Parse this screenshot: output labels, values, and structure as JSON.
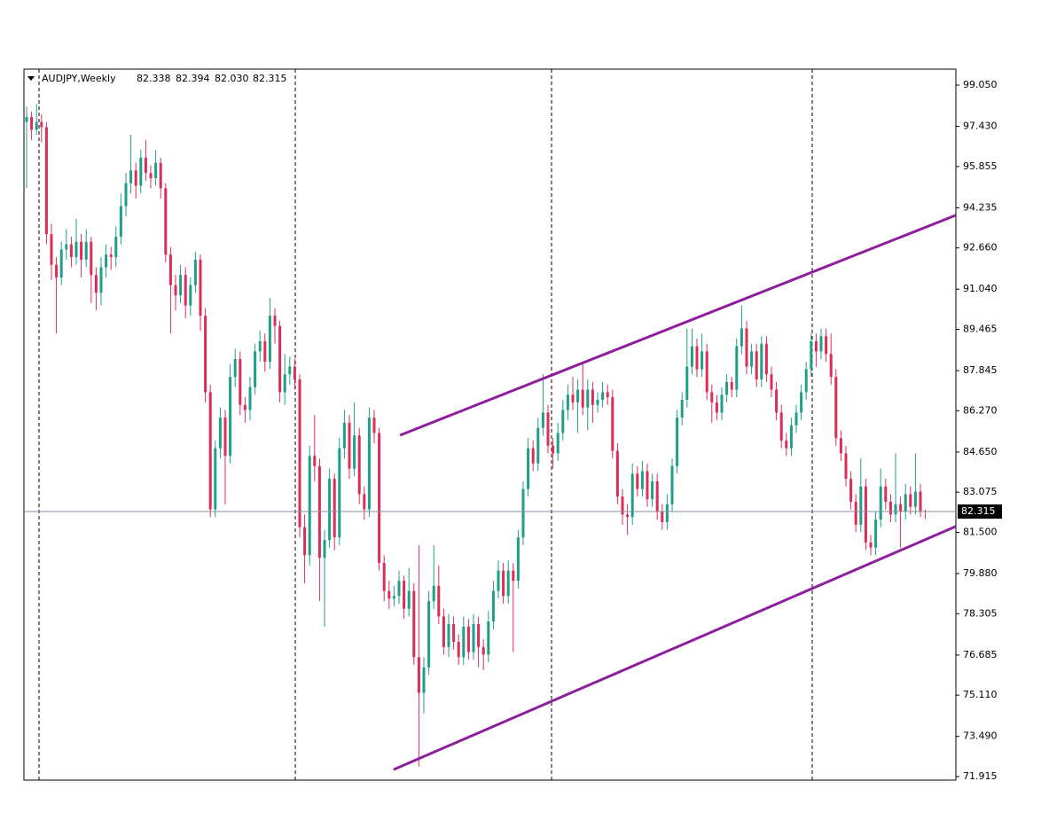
{
  "chart_data": {
    "type": "candlestick",
    "symbol": "AUDJPY,Weekly",
    "header_values": [
      82.338,
      82.394,
      {
        "value": 82.03,
        "label": "82.030"
      },
      82.315
    ],
    "last_price": 82.315,
    "ylim": [
      71.776,
      99.676
    ],
    "yticks": [
      {
        "value": 99.05,
        "label": "99.050"
      },
      {
        "value": 97.43,
        "label": "97.430"
      },
      95.855,
      94.235,
      {
        "value": 92.66,
        "label": "92.660"
      },
      {
        "value": 91.04,
        "label": "91.040"
      },
      89.465,
      87.845,
      {
        "value": 86.27,
        "label": "86.270"
      },
      {
        "value": 84.65,
        "label": "84.650"
      },
      83.075,
      {
        "value": 81.5,
        "label": "81.500"
      },
      {
        "value": 79.88,
        "label": "79.880"
      },
      78.305,
      76.685,
      {
        "value": 75.11,
        "label": "75.110"
      },
      {
        "value": 73.49,
        "label": "73.490"
      },
      71.915
    ],
    "up_color": "#1f9e89",
    "down_color": "#dc2c57",
    "ohlc": [
      [
        97.6,
        98.2,
        95.0,
        97.8
      ],
      [
        97.8,
        98.0,
        96.9,
        97.3
      ],
      [
        97.3,
        98.3,
        97.1,
        97.6
      ],
      [
        97.6,
        97.9,
        96.8,
        97.4
      ],
      [
        97.4,
        97.6,
        92.8,
        93.2
      ],
      [
        93.2,
        93.6,
        91.4,
        92.0
      ],
      [
        92.0,
        92.3,
        89.3,
        91.5
      ],
      [
        91.5,
        92.9,
        91.2,
        92.6
      ],
      [
        92.6,
        93.4,
        92.2,
        92.8
      ],
      [
        92.8,
        93.1,
        91.9,
        92.3
      ],
      [
        92.3,
        93.8,
        92.0,
        92.9
      ],
      [
        92.9,
        93.2,
        91.5,
        92.2
      ],
      [
        92.2,
        93.4,
        91.9,
        92.9
      ],
      [
        92.9,
        93.1,
        90.5,
        91.6
      ],
      [
        91.6,
        91.9,
        90.2,
        90.9
      ],
      [
        90.9,
        92.3,
        90.4,
        91.9
      ],
      [
        91.9,
        92.8,
        91.5,
        92.4
      ],
      [
        92.4,
        92.7,
        91.8,
        92.3
      ],
      [
        92.3,
        93.5,
        91.9,
        93.1
      ],
      [
        93.1,
        94.8,
        92.8,
        94.3
      ],
      [
        94.3,
        95.6,
        93.9,
        95.2
      ],
      [
        95.2,
        97.1,
        94.8,
        95.7
      ],
      [
        95.7,
        96.0,
        94.6,
        95.1
      ],
      [
        95.1,
        96.5,
        94.8,
        96.2
      ],
      [
        96.2,
        96.9,
        95.3,
        95.6
      ],
      [
        95.6,
        95.9,
        95.0,
        95.4
      ],
      [
        95.4,
        96.5,
        95.1,
        96.0
      ],
      [
        96.0,
        96.2,
        94.6,
        95.0
      ],
      [
        95.0,
        95.2,
        92.1,
        92.4
      ],
      [
        92.4,
        92.7,
        89.3,
        91.2
      ],
      [
        91.2,
        91.6,
        90.2,
        90.8
      ],
      [
        90.8,
        92.0,
        90.5,
        91.6
      ],
      [
        91.6,
        91.9,
        89.9,
        90.4
      ],
      [
        90.4,
        91.5,
        90.0,
        91.2
      ],
      [
        91.2,
        92.5,
        90.9,
        92.2
      ],
      [
        92.2,
        92.4,
        89.4,
        90.0
      ],
      [
        90.0,
        90.3,
        86.6,
        87.0
      ],
      [
        87.0,
        87.3,
        82.1,
        82.4
      ],
      [
        82.4,
        85.1,
        82.1,
        84.8
      ],
      [
        84.8,
        86.4,
        84.4,
        86.0
      ],
      [
        86.0,
        86.3,
        82.6,
        84.5
      ],
      [
        84.5,
        88.1,
        84.2,
        87.6
      ],
      [
        87.6,
        88.7,
        87.2,
        88.3
      ],
      [
        88.3,
        88.6,
        86.1,
        86.5
      ],
      [
        86.5,
        86.8,
        85.8,
        86.3
      ],
      [
        86.3,
        87.6,
        85.9,
        87.2
      ],
      [
        87.2,
        88.9,
        86.9,
        88.6
      ],
      [
        88.6,
        89.4,
        88.2,
        89.0
      ],
      [
        89.0,
        89.3,
        87.8,
        88.2
      ],
      [
        88.2,
        90.7,
        87.9,
        90.0
      ],
      [
        90.0,
        90.3,
        88.9,
        89.6
      ],
      [
        89.6,
        89.8,
        86.6,
        87.0
      ],
      [
        87.0,
        88.5,
        86.5,
        87.7
      ],
      [
        87.7,
        88.4,
        87.3,
        88.0
      ],
      [
        88.0,
        88.3,
        87.1,
        87.5
      ],
      [
        87.5,
        87.7,
        81.3,
        81.7
      ],
      [
        81.7,
        82.2,
        79.5,
        80.6
      ],
      [
        80.6,
        84.9,
        80.2,
        84.5
      ],
      [
        84.5,
        86.1,
        83.5,
        84.1
      ],
      [
        84.1,
        84.4,
        78.8,
        80.5
      ],
      [
        80.5,
        81.6,
        77.8,
        81.2
      ],
      [
        81.2,
        84.0,
        80.9,
        83.6
      ],
      [
        83.6,
        83.8,
        80.8,
        81.3
      ],
      [
        81.3,
        85.2,
        81.0,
        84.8
      ],
      [
        84.8,
        86.3,
        84.4,
        85.8
      ],
      [
        85.8,
        86.1,
        83.6,
        84.0
      ],
      [
        84.0,
        86.6,
        83.7,
        85.3
      ],
      [
        85.3,
        85.6,
        82.6,
        83.0
      ],
      [
        83.0,
        83.3,
        82.0,
        82.4
      ],
      [
        82.4,
        86.4,
        82.1,
        86.0
      ],
      [
        86.0,
        86.3,
        85.0,
        85.4
      ],
      [
        85.4,
        85.6,
        80.0,
        80.3
      ],
      [
        80.3,
        80.6,
        78.8,
        79.2
      ],
      [
        79.2,
        79.6,
        78.5,
        78.9
      ],
      [
        78.9,
        79.4,
        78.6,
        79.0
      ],
      [
        79.0,
        80.0,
        78.7,
        79.6
      ],
      [
        79.6,
        79.8,
        78.1,
        78.5
      ],
      [
        78.5,
        80.1,
        78.2,
        79.2
      ],
      [
        79.2,
        79.5,
        76.3,
        76.6
      ],
      [
        76.6,
        81.0,
        72.3,
        75.2
      ],
      [
        75.2,
        76.6,
        74.4,
        76.2
      ],
      [
        76.2,
        79.2,
        75.9,
        78.8
      ],
      [
        78.8,
        81.0,
        78.5,
        79.4
      ],
      [
        79.4,
        80.2,
        77.9,
        78.2
      ],
      [
        78.2,
        78.5,
        76.7,
        77.0
      ],
      [
        77.0,
        78.3,
        76.6,
        77.9
      ],
      [
        77.9,
        78.2,
        76.9,
        77.2
      ],
      [
        77.2,
        77.5,
        76.3,
        76.6
      ],
      [
        76.6,
        78.2,
        76.3,
        77.8
      ],
      [
        77.8,
        78.1,
        76.5,
        76.8
      ],
      [
        76.8,
        78.3,
        76.5,
        77.9
      ],
      [
        77.9,
        78.2,
        76.2,
        77.0
      ],
      [
        77.0,
        77.3,
        76.1,
        76.7
      ],
      [
        76.7,
        78.4,
        76.4,
        78.0
      ],
      [
        78.0,
        79.6,
        77.7,
        79.2
      ],
      [
        79.2,
        80.4,
        78.9,
        80.0
      ],
      [
        80.0,
        80.3,
        78.7,
        79.0
      ],
      [
        79.0,
        80.4,
        78.7,
        80.0
      ],
      [
        80.0,
        80.3,
        76.8,
        79.6
      ],
      [
        79.6,
        81.6,
        79.3,
        81.3
      ],
      [
        81.3,
        83.5,
        81.0,
        83.2
      ],
      [
        83.2,
        85.2,
        82.9,
        84.8
      ],
      [
        84.8,
        85.1,
        83.9,
        84.2
      ],
      [
        84.2,
        86.0,
        83.9,
        85.6
      ],
      [
        85.6,
        87.7,
        85.3,
        86.2
      ],
      [
        86.2,
        86.5,
        84.6,
        84.9
      ],
      [
        84.9,
        85.2,
        84.0,
        84.6
      ],
      [
        84.6,
        85.8,
        84.3,
        85.4
      ],
      [
        85.4,
        86.7,
        85.1,
        86.3
      ],
      [
        86.3,
        87.3,
        85.9,
        86.9
      ],
      [
        86.9,
        87.6,
        86.3,
        86.6
      ],
      [
        86.6,
        87.5,
        85.4,
        87.1
      ],
      [
        87.1,
        88.2,
        86.1,
        86.4
      ],
      [
        86.4,
        87.5,
        85.5,
        87.1
      ],
      [
        87.1,
        87.4,
        85.8,
        86.5
      ],
      [
        86.5,
        87.0,
        86.2,
        86.7
      ],
      [
        86.7,
        87.4,
        86.4,
        87.0
      ],
      [
        87.0,
        87.3,
        86.5,
        86.8
      ],
      [
        86.8,
        87.1,
        84.4,
        84.7
      ],
      [
        84.7,
        85.0,
        82.6,
        82.9
      ],
      [
        82.9,
        83.2,
        81.8,
        82.2
      ],
      [
        82.2,
        82.6,
        81.4,
        82.1
      ],
      [
        82.1,
        84.2,
        81.8,
        83.8
      ],
      [
        83.8,
        84.1,
        82.9,
        83.2
      ],
      [
        83.2,
        84.3,
        82.9,
        83.9
      ],
      [
        83.9,
        84.2,
        82.5,
        82.8
      ],
      [
        82.8,
        83.8,
        82.5,
        83.5
      ],
      [
        83.5,
        83.8,
        82.0,
        82.3
      ],
      [
        82.3,
        82.6,
        81.6,
        81.9
      ],
      [
        81.9,
        83.0,
        81.6,
        82.6
      ],
      [
        82.6,
        84.4,
        82.3,
        84.1
      ],
      [
        84.1,
        86.3,
        83.8,
        86.0
      ],
      [
        86.0,
        87.0,
        85.7,
        86.7
      ],
      [
        86.7,
        89.5,
        86.4,
        88.0
      ],
      [
        88.0,
        89.5,
        87.7,
        88.8
      ],
      [
        88.8,
        89.1,
        87.6,
        87.9
      ],
      [
        87.9,
        89.3,
        87.6,
        88.6
      ],
      [
        88.6,
        88.9,
        86.7,
        87.0
      ],
      [
        87.0,
        87.3,
        85.8,
        86.6
      ],
      [
        86.6,
        86.9,
        85.9,
        86.2
      ],
      [
        86.2,
        87.2,
        85.9,
        86.9
      ],
      [
        86.9,
        87.7,
        86.6,
        87.4
      ],
      [
        87.4,
        87.6,
        86.8,
        87.1
      ],
      [
        87.1,
        89.1,
        86.8,
        88.8
      ],
      [
        88.8,
        90.4,
        88.5,
        89.5
      ],
      [
        89.5,
        89.8,
        87.7,
        88.0
      ],
      [
        88.0,
        88.9,
        87.7,
        88.6
      ],
      [
        88.6,
        88.9,
        87.2,
        87.5
      ],
      [
        87.5,
        89.2,
        87.2,
        88.9
      ],
      [
        88.9,
        89.2,
        87.4,
        87.7
      ],
      [
        87.7,
        88.0,
        86.8,
        87.1
      ],
      [
        87.1,
        87.4,
        85.9,
        86.2
      ],
      [
        86.2,
        86.5,
        84.8,
        85.1
      ],
      [
        85.1,
        85.4,
        84.5,
        84.8
      ],
      [
        84.8,
        86.0,
        84.5,
        85.7
      ],
      [
        85.7,
        86.5,
        85.4,
        86.2
      ],
      [
        86.2,
        87.3,
        85.9,
        87.0
      ],
      [
        87.0,
        88.2,
        86.7,
        87.9
      ],
      [
        87.9,
        89.3,
        87.6,
        89.0
      ],
      [
        89.0,
        89.3,
        88.0,
        88.6
      ],
      [
        88.6,
        89.5,
        88.3,
        89.2
      ],
      [
        89.2,
        89.5,
        88.2,
        88.5
      ],
      [
        88.5,
        89.3,
        87.3,
        87.6
      ],
      [
        87.6,
        87.9,
        84.9,
        85.2
      ],
      [
        85.2,
        85.5,
        84.3,
        84.6
      ],
      [
        84.6,
        84.9,
        83.3,
        83.6
      ],
      [
        83.6,
        83.9,
        82.4,
        82.7
      ],
      [
        82.7,
        83.0,
        81.5,
        81.8
      ],
      [
        81.8,
        84.4,
        81.5,
        83.3
      ],
      [
        83.3,
        83.6,
        80.8,
        81.1
      ],
      [
        81.1,
        81.4,
        80.6,
        80.9
      ],
      [
        80.9,
        82.3,
        80.6,
        82.0
      ],
      [
        82.0,
        84.0,
        81.7,
        83.3
      ],
      [
        83.3,
        83.6,
        82.4,
        82.7
      ],
      [
        82.7,
        83.0,
        81.9,
        82.2
      ],
      [
        82.2,
        84.6,
        81.9,
        82.6
      ],
      [
        82.6,
        82.9,
        80.9,
        82.3
      ],
      [
        82.3,
        83.4,
        82.0,
        83.0
      ],
      [
        83.0,
        83.3,
        82.2,
        82.5
      ],
      [
        82.5,
        84.6,
        82.2,
        83.1
      ],
      [
        83.1,
        83.4,
        82.1,
        82.338
      ],
      [
        82.338,
        82.394,
        82.03,
        82.315
      ]
    ],
    "trendlines": [
      {
        "color": "#8e1e9e",
        "x": [
          75.2,
          187.1
        ],
        "y": [
          85.31,
          93.94
        ]
      },
      {
        "color": "#8e1e9e",
        "x": [
          73.9,
          187.1
        ],
        "y": [
          72.19,
          81.73
        ]
      }
    ]
  }
}
